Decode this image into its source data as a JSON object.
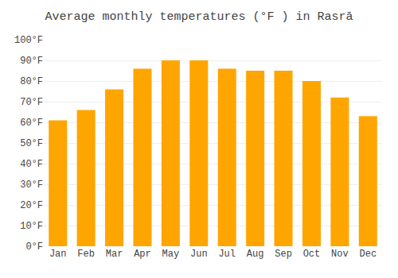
{
  "chart_data": {
    "type": "bar",
    "title": "Average monthly temperatures (°F ) in Rasrā",
    "categories": [
      "Jan",
      "Feb",
      "Mar",
      "Apr",
      "May",
      "Jun",
      "Jul",
      "Aug",
      "Sep",
      "Oct",
      "Nov",
      "Dec"
    ],
    "values": [
      61,
      66,
      76,
      86,
      90,
      90,
      86,
      85,
      85,
      80,
      72,
      63
    ],
    "color": "#FFA500",
    "ylim": [
      0,
      100
    ],
    "yticks": [
      {
        "value": 0,
        "label": "0°F"
      },
      {
        "value": 10,
        "label": "10°F"
      },
      {
        "value": 20,
        "label": "20°F"
      },
      {
        "value": 30,
        "label": "30°F"
      },
      {
        "value": 40,
        "label": "40°F"
      },
      {
        "value": 50,
        "label": "50°F"
      },
      {
        "value": 60,
        "label": "60°F"
      },
      {
        "value": 70,
        "label": "70°F"
      },
      {
        "value": 80,
        "label": "80°F"
      },
      {
        "value": 90,
        "label": "90°F"
      },
      {
        "value": 100,
        "label": "100°F"
      }
    ],
    "grid": true
  }
}
